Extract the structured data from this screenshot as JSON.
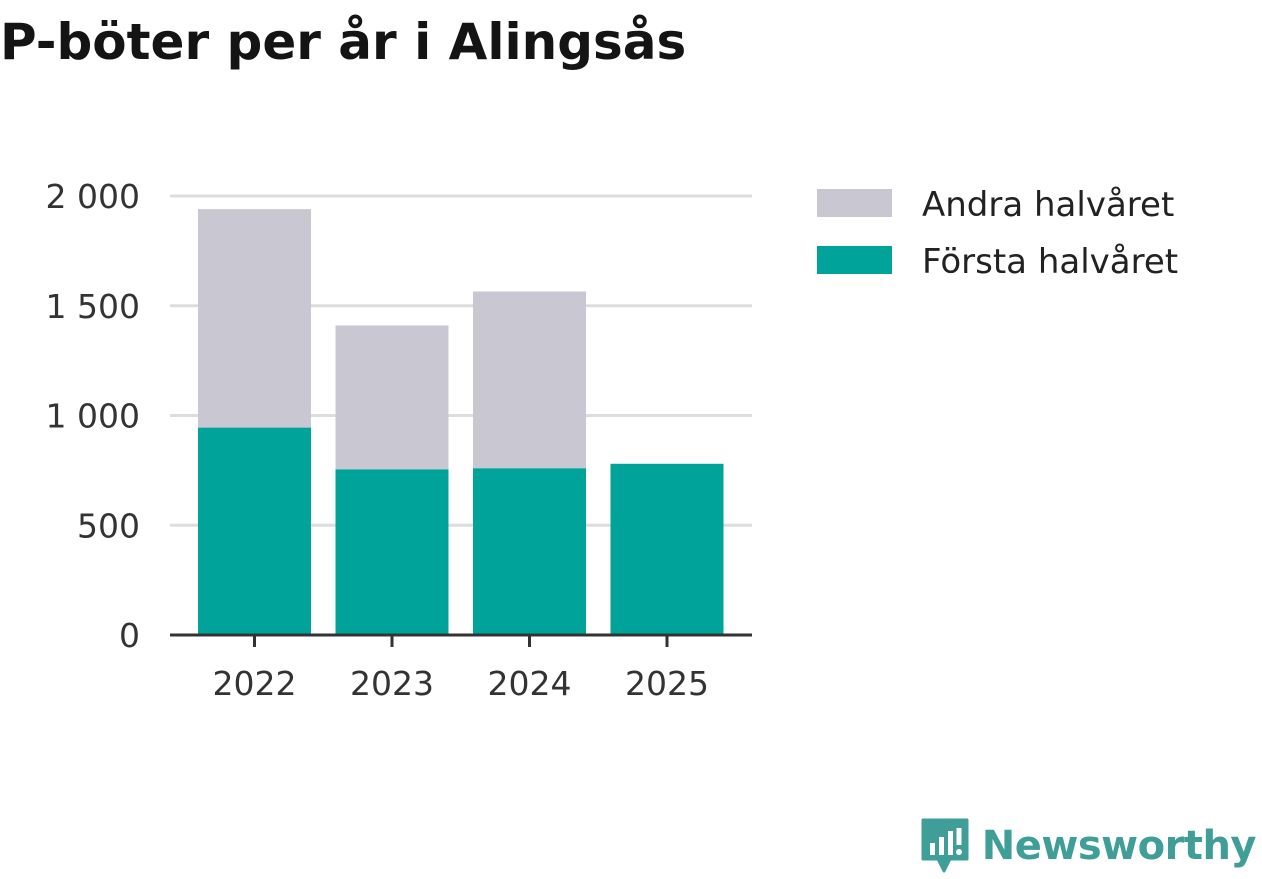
{
  "chart_data": {
    "type": "bar",
    "stacked": true,
    "title": "P-böter per år i Alingsås",
    "categories": [
      "2022",
      "2023",
      "2024",
      "2025"
    ],
    "series": [
      {
        "name": "Första halvåret",
        "color": "#00a39a",
        "values": [
          945,
          755,
          760,
          780
        ]
      },
      {
        "name": "Andra halvåret",
        "color": "#c8c7d2",
        "values": [
          995,
          655,
          805,
          0
        ]
      }
    ],
    "legend_order": [
      "Andra halvåret",
      "Första halvåret"
    ],
    "legend_position": "right",
    "ylim": [
      0,
      2000
    ],
    "yticks": [
      0,
      500,
      1000,
      1500,
      2000
    ],
    "ytick_labels": [
      "0",
      "500",
      "1 000",
      "1 500",
      "2 000"
    ],
    "xlabel": "",
    "ylabel": "",
    "grid": true,
    "colors": {
      "grid": "#dddddd",
      "axis": "#333333"
    }
  },
  "brand": {
    "name": "Newsworthy",
    "color": "#3f9e98",
    "icon": "newsworthy-logo-icon"
  }
}
